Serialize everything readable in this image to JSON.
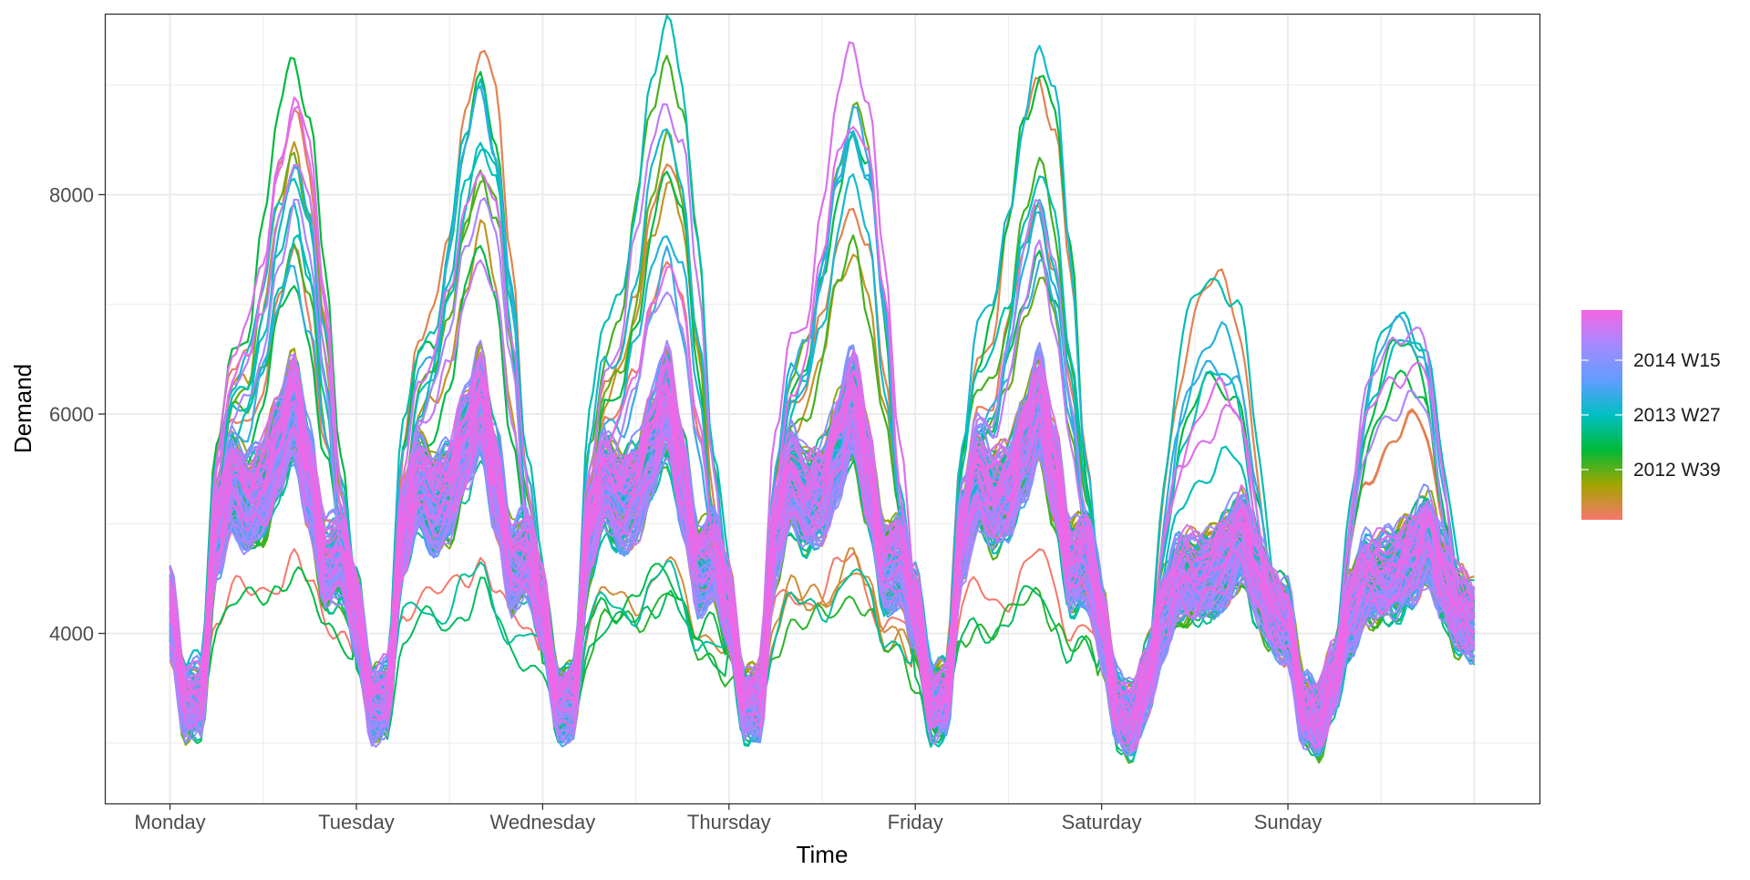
{
  "chart_data": {
    "type": "line",
    "title": "",
    "xlabel": "Time",
    "ylabel": "Demand",
    "x_ticks": [
      "Monday",
      "Tuesday",
      "Wednesday",
      "Thursday",
      "Friday",
      "Saturday",
      "Sunday"
    ],
    "y_ticks": [
      4000,
      6000,
      8000
    ],
    "xlim_days": [
      -0.35,
      7.35
    ],
    "ylim": [
      2450,
      9650
    ],
    "grid": true,
    "legend": {
      "position": "right",
      "type": "continuous-colorbar",
      "labels": [
        "2014 W15",
        "2013 W27",
        "2012 W39"
      ],
      "colors_bottom_to_top": [
        "#f8766d",
        "#a3a500",
        "#00ba38",
        "#00bfc4",
        "#619cff",
        "#a58aff",
        "#f564e3"
      ]
    },
    "weekday_shape": {
      "hour_of_day": [
        0,
        2,
        4,
        6,
        8,
        10,
        12,
        14,
        16,
        18,
        20,
        22,
        24
      ],
      "typical_demand": [
        4200,
        3350,
        3400,
        4900,
        5400,
        5200,
        5300,
        5700,
        6100,
        5400,
        4600,
        4700,
        4200
      ],
      "peak_day_demand": [
        4300,
        3500,
        3600,
        5600,
        6500,
        6800,
        7700,
        8700,
        9200,
        8800,
        7400,
        5400,
        4300
      ]
    },
    "weekend_shape": {
      "hour_of_day": [
        0,
        2,
        4,
        6,
        8,
        10,
        12,
        14,
        16,
        18,
        20,
        22,
        24
      ],
      "typical_demand": [
        4100,
        3300,
        3200,
        3600,
        4200,
        4500,
        4500,
        4550,
        4700,
        4900,
        4500,
        4200,
        4100
      ]
    },
    "series": [
      {
        "week": "2012 W39",
        "color": "#f8766d"
      },
      {
        "week": "2013 W27",
        "color": "#00ba38"
      },
      {
        "week": "2014 W15",
        "color": "#f564e3"
      }
    ]
  }
}
